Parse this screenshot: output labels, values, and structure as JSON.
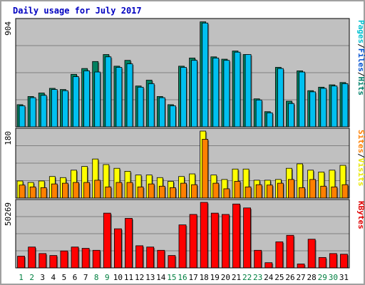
{
  "chart_data": {
    "type": "bar",
    "title": "Daily usage for July 2017",
    "days": [
      "1",
      "2",
      "3",
      "4",
      "5",
      "6",
      "7",
      "8",
      "9",
      "10",
      "11",
      "12",
      "13",
      "14",
      "15",
      "16",
      "17",
      "18",
      "19",
      "20",
      "21",
      "22",
      "23",
      "24",
      "25",
      "26",
      "27",
      "28",
      "29",
      "30",
      "31"
    ],
    "weekend_days": [
      "1",
      "2",
      "8",
      "9",
      "15",
      "16",
      "22",
      "23",
      "29",
      "30"
    ],
    "panels": [
      {
        "name": "hits-files-pages",
        "max_label": "904",
        "ymax": 904,
        "legend": [
          "Pages",
          "/",
          "Files",
          "/",
          "Hits"
        ],
        "legend_colors": [
          "#00c0d0",
          "#000000",
          "#0050d0",
          "#000000",
          "#00806a"
        ],
        "series": [
          {
            "name": "Hits",
            "color": "#008060",
            "values": [
              190,
              260,
              290,
              330,
              320,
              450,
              500,
              560,
              620,
              520,
              570,
              350,
              400,
              260,
              190,
              520,
              590,
              900,
              600,
              580,
              650,
              620,
              240,
              130,
              510,
              220,
              480,
              310,
              340,
              360,
              380
            ]
          },
          {
            "name": "Files",
            "color": "#00c0f0",
            "values": [
              180,
              250,
              270,
              320,
              310,
              430,
              480,
              470,
              600,
              510,
              540,
              340,
              370,
              250,
              180,
              510,
              570,
              890,
              590,
              570,
              640,
              620,
              230,
              120,
              500,
              200,
              470,
              300,
              330,
              350,
              370
            ]
          }
        ]
      },
      {
        "name": "visits-sites",
        "max_label": "180",
        "ymax": 180,
        "legend": [
          "Sites",
          "/",
          "Visits"
        ],
        "legend_colors": [
          "#ff8000",
          "#000000",
          "#e8e800"
        ],
        "series": [
          {
            "name": "Visits",
            "color": "#ffff00",
            "values": [
              46,
              42,
              46,
              58,
              55,
              75,
              85,
              105,
              90,
              80,
              72,
              62,
              62,
              55,
              45,
              58,
              65,
              180,
              62,
              50,
              78,
              78,
              48,
              48,
              50,
              80,
              92,
              75,
              70,
              75,
              88
            ]
          },
          {
            "name": "Sites",
            "color": "#ff8000",
            "values": [
              35,
              30,
              28,
              38,
              40,
              42,
              42,
              48,
              30,
              42,
              42,
              30,
              38,
              32,
              28,
              40,
              36,
              158,
              40,
              25,
              45,
              30,
              36,
              35,
              40,
              50,
              28,
              50,
              32,
              30,
              36
            ]
          }
        ]
      },
      {
        "name": "kbytes",
        "max_label": "50269",
        "ymax": 50269,
        "legend": [
          "KBytes"
        ],
        "legend_colors": [
          "#e00000"
        ],
        "series": [
          {
            "name": "KBytes",
            "color": "#ff0000",
            "values": [
              9000,
              16000,
              11000,
              9500,
              13000,
              16000,
              15000,
              13500,
              42000,
              30000,
              38000,
              17000,
              16000,
              13500,
              9500,
              33000,
              41000,
              50269,
              42000,
              41000,
              49000,
              46000,
              13500,
              4000,
              20000,
              25000,
              3000,
              22000,
              8000,
              11000,
              10500
            ]
          }
        ]
      }
    ]
  },
  "colors": {
    "plot_bg": "#c0c0c0",
    "frame": "#a8a8a8",
    "title": "#0000c0",
    "weekday": "#000000",
    "weekend": "#008040",
    "grid": "#808080"
  }
}
